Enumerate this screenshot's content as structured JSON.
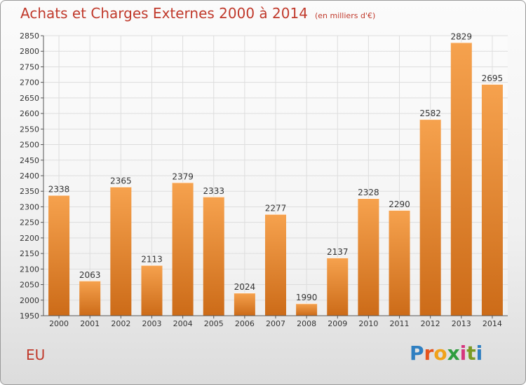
{
  "header": {
    "title": "Achats et Charges Externes 2000 à 2014",
    "unit": "(en milliers d'€)"
  },
  "footer": {
    "region": "EU",
    "brand_letters": [
      "P",
      "r",
      "o",
      "x",
      "i",
      "t",
      "i"
    ],
    "brand_colors": [
      "#2f7fc1",
      "#e6541d",
      "#f0a21a",
      "#2f9e3f",
      "#d6357e",
      "#7a9a24",
      "#2f7fc1"
    ]
  },
  "colors": {
    "title": "#c0392b",
    "bar_top": "#f6a24e",
    "bar_bottom": "#cc6b18",
    "grid": "#dddddd"
  },
  "chart_data": {
    "type": "bar",
    "title": "Achats et Charges Externes 2000 à 2014",
    "categories": [
      "2000",
      "2001",
      "2002",
      "2003",
      "2004",
      "2005",
      "2006",
      "2007",
      "2008",
      "2009",
      "2010",
      "2011",
      "2012",
      "2013",
      "2014"
    ],
    "values": [
      2338,
      2063,
      2365,
      2113,
      2379,
      2333,
      2024,
      2277,
      1990,
      2137,
      2328,
      2290,
      2582,
      2829,
      2695
    ],
    "ylim": [
      1950,
      2850
    ],
    "yticks": [
      1950,
      2000,
      2050,
      2100,
      2150,
      2200,
      2250,
      2300,
      2350,
      2400,
      2450,
      2500,
      2550,
      2600,
      2650,
      2700,
      2750,
      2800,
      2850
    ],
    "xlabel": "",
    "ylabel": "",
    "grid": true,
    "data_labels": true
  }
}
